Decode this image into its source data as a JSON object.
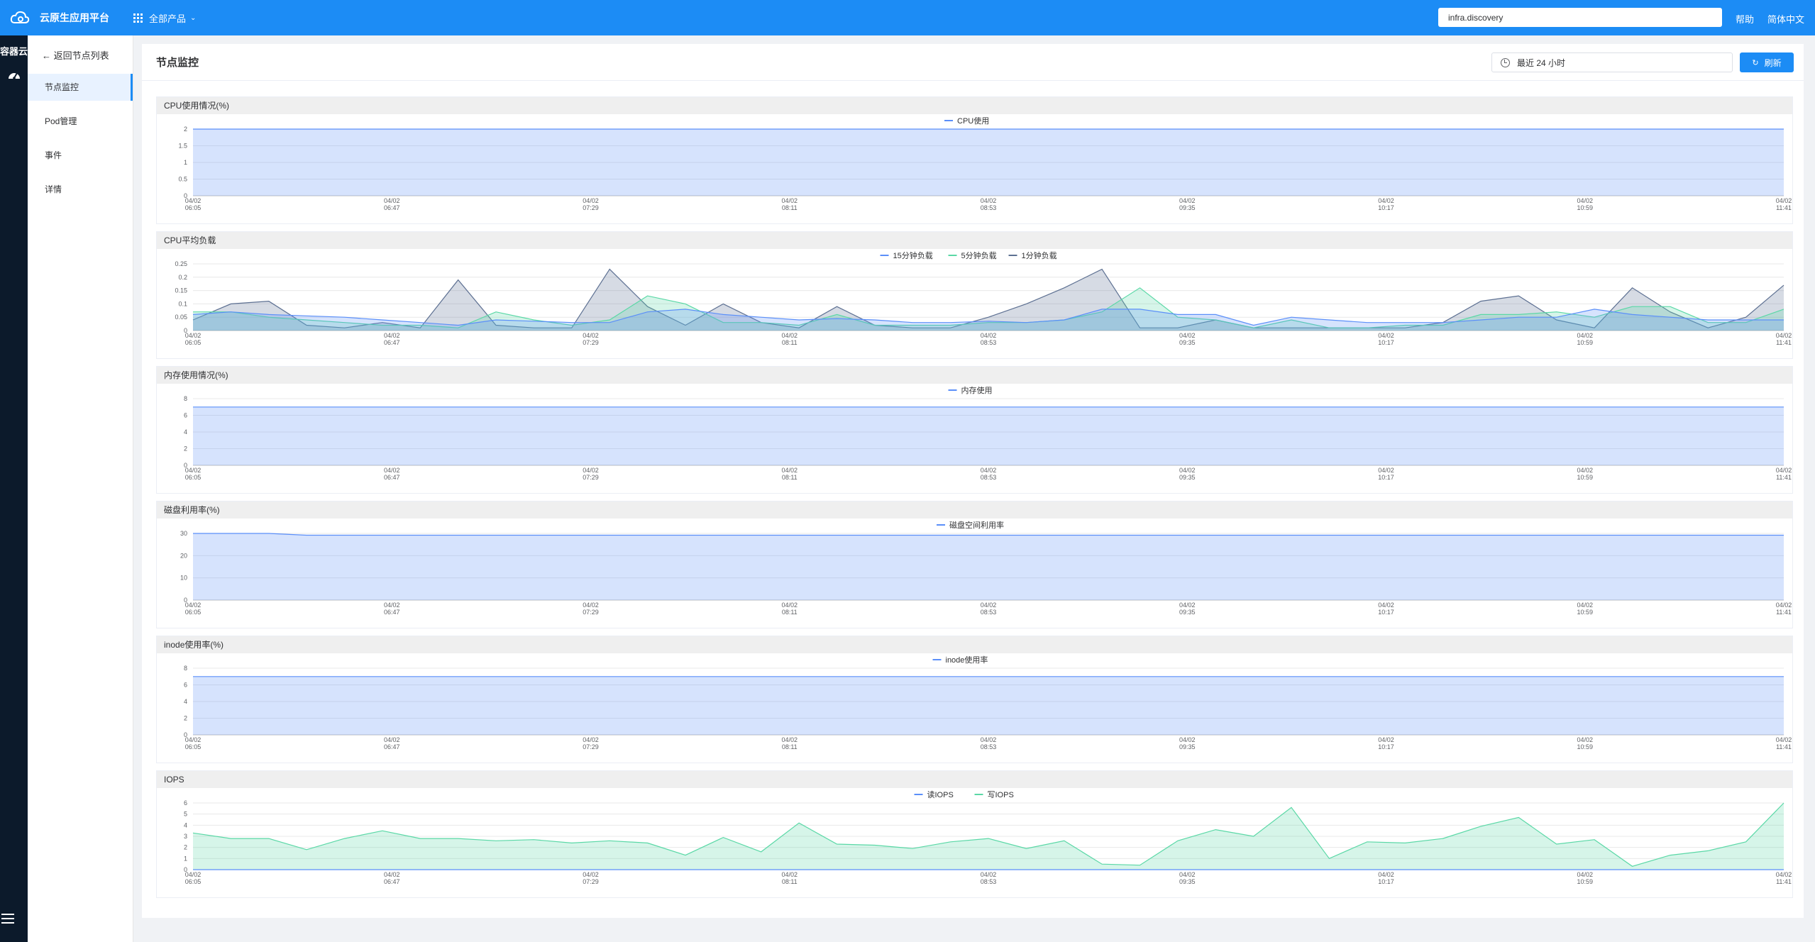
{
  "header": {
    "brand": "云原生应用平台",
    "products": "全部产品",
    "search_value": "infra.discovery",
    "help": "帮助",
    "language": "简体中文"
  },
  "leftnav": {
    "title": "容器云"
  },
  "sidebar": {
    "back": "← 返回节点列表",
    "items": [
      {
        "label": "节点监控"
      },
      {
        "label": "Pod管理"
      },
      {
        "label": "事件"
      },
      {
        "label": "详情"
      }
    ]
  },
  "page": {
    "title": "节点监控",
    "time_range": "最近 24 小时",
    "refresh": "刷新"
  },
  "colors": {
    "blue": "#5b8ff9",
    "green": "#5ad8a6",
    "dark": "#5d7092",
    "brand": "#1c8cf5"
  },
  "chart_data": [
    {
      "type": "area",
      "title": "CPU使用情况(%)",
      "ylim": [
        0,
        2
      ],
      "yticks": [
        "0",
        "0.5",
        "1",
        "1.5",
        "2"
      ],
      "xticks": [
        "04/02 06:05",
        "04/02 06:47",
        "04/02 07:29",
        "04/02 08:11",
        "04/02 08:53",
        "04/02 09:35",
        "04/02 10:17",
        "04/02 10:59",
        "04/02 11:41"
      ],
      "series": [
        {
          "name": "CPU使用",
          "color": "#5b8ff9",
          "values": [
            2,
            2,
            2,
            2,
            2,
            2,
            2,
            2,
            2,
            2,
            2,
            2,
            2,
            2,
            2,
            2,
            2,
            2,
            2,
            2,
            2,
            2,
            2,
            2,
            2,
            2,
            2,
            2,
            2,
            2,
            2,
            2,
            2,
            2,
            2,
            2,
            2,
            2,
            2,
            2,
            2,
            2,
            2
          ]
        }
      ]
    },
    {
      "type": "area",
      "title": "CPU平均负载",
      "ylim": [
        0,
        0.25
      ],
      "yticks": [
        "0",
        "0.05",
        "0.1",
        "0.15",
        "0.2",
        "0.25"
      ],
      "xticks": [
        "04/02 06:05",
        "04/02 06:47",
        "04/02 07:29",
        "04/02 08:11",
        "04/02 08:53",
        "04/02 09:35",
        "04/02 10:17",
        "04/02 10:59",
        "04/02 11:41"
      ],
      "series": [
        {
          "name": "15分钟负载",
          "color": "#5b8ff9",
          "values": [
            0.06,
            0.07,
            0.06,
            0.055,
            0.05,
            0.04,
            0.03,
            0.02,
            0.04,
            0.035,
            0.03,
            0.03,
            0.07,
            0.08,
            0.06,
            0.05,
            0.04,
            0.045,
            0.04,
            0.03,
            0.03,
            0.035,
            0.03,
            0.04,
            0.08,
            0.08,
            0.06,
            0.06,
            0.02,
            0.05,
            0.04,
            0.03,
            0.03,
            0.03,
            0.04,
            0.05,
            0.05,
            0.08,
            0.06,
            0.05,
            0.04,
            0.04,
            0.04
          ]
        },
        {
          "name": "5分钟负载",
          "color": "#5ad8a6",
          "values": [
            0.07,
            0.07,
            0.05,
            0.04,
            0.03,
            0.02,
            0.02,
            0.01,
            0.07,
            0.04,
            0.02,
            0.04,
            0.13,
            0.1,
            0.03,
            0.03,
            0.02,
            0.06,
            0.02,
            0.02,
            0.02,
            0.03,
            0.03,
            0.04,
            0.07,
            0.16,
            0.05,
            0.04,
            0.01,
            0.04,
            0.01,
            0.01,
            0.02,
            0.02,
            0.06,
            0.06,
            0.07,
            0.05,
            0.09,
            0.09,
            0.03,
            0.03,
            0.08
          ]
        },
        {
          "name": "1分钟负载",
          "color": "#5d7092",
          "values": [
            0.04,
            0.1,
            0.11,
            0.02,
            0.01,
            0.03,
            0.01,
            0.19,
            0.02,
            0.01,
            0.01,
            0.23,
            0.09,
            0.02,
            0.1,
            0.03,
            0.01,
            0.09,
            0.02,
            0.01,
            0.01,
            0.05,
            0.1,
            0.16,
            0.23,
            0.01,
            0.01,
            0.04,
            0.01,
            0.01,
            0.01,
            0.01,
            0.01,
            0.03,
            0.11,
            0.13,
            0.04,
            0.01,
            0.16,
            0.07,
            0.01,
            0.05,
            0.17
          ]
        }
      ]
    },
    {
      "type": "area",
      "title": "内存使用情况(%)",
      "ylim": [
        0,
        8
      ],
      "yticks": [
        "0",
        "2",
        "4",
        "6",
        "8"
      ],
      "xticks": [
        "04/02 06:05",
        "04/02 06:47",
        "04/02 07:29",
        "04/02 08:11",
        "04/02 08:53",
        "04/02 09:35",
        "04/02 10:17",
        "04/02 10:59",
        "04/02 11:41"
      ],
      "series": [
        {
          "name": "内存使用",
          "color": "#5b8ff9",
          "values": [
            7,
            7,
            7,
            7,
            7,
            7,
            7,
            7,
            7,
            7,
            7,
            7,
            7,
            7,
            7,
            7,
            7,
            7,
            7,
            7,
            7,
            7,
            7,
            7,
            7,
            7,
            7,
            7,
            7,
            7,
            7,
            7,
            7,
            7,
            7,
            7,
            7,
            7,
            7,
            7,
            7,
            7,
            7
          ]
        }
      ]
    },
    {
      "type": "area",
      "title": "磁盘利用率(%)",
      "ylim": [
        0,
        30
      ],
      "yticks": [
        "0",
        "10",
        "20",
        "30"
      ],
      "xticks": [
        "04/02 06:05",
        "04/02 06:47",
        "04/02 07:29",
        "04/02 08:11",
        "04/02 08:53",
        "04/02 09:35",
        "04/02 10:17",
        "04/02 10:59",
        "04/02 11:41"
      ],
      "series": [
        {
          "name": "磁盘空间利用率",
          "color": "#5b8ff9",
          "values": [
            30,
            30,
            30,
            29.2,
            29.2,
            29.2,
            29.2,
            29.2,
            29.2,
            29.2,
            29.2,
            29.2,
            29.2,
            29.2,
            29.2,
            29.2,
            29.2,
            29.2,
            29.2,
            29.2,
            29.2,
            29.2,
            29.2,
            29.2,
            29.2,
            29.2,
            29.2,
            29.2,
            29.2,
            29.2,
            29.2,
            29.2,
            29.2,
            29.2,
            29.2,
            29.2,
            29.2,
            29.2,
            29.2,
            29.2,
            29.2,
            29.2,
            29.2
          ]
        }
      ]
    },
    {
      "type": "area",
      "title": "inode使用率(%)",
      "ylim": [
        0,
        8
      ],
      "yticks": [
        "0",
        "2",
        "4",
        "6",
        "8"
      ],
      "xticks": [
        "04/02 06:05",
        "04/02 06:47",
        "04/02 07:29",
        "04/02 08:11",
        "04/02 08:53",
        "04/02 09:35",
        "04/02 10:17",
        "04/02 10:59",
        "04/02 11:41"
      ],
      "series": [
        {
          "name": "inode使用率",
          "color": "#5b8ff9",
          "values": [
            7,
            7,
            7,
            7,
            7,
            7,
            7,
            7,
            7,
            7,
            7,
            7,
            7,
            7,
            7,
            7,
            7,
            7,
            7,
            7,
            7,
            7,
            7,
            7,
            7,
            7,
            7,
            7,
            7,
            7,
            7,
            7,
            7,
            7,
            7,
            7,
            7,
            7,
            7,
            7,
            7,
            7,
            7
          ]
        }
      ]
    },
    {
      "type": "area",
      "title": "IOPS",
      "ylim": [
        0,
        6
      ],
      "yticks": [
        "0",
        "1",
        "2",
        "3",
        "4",
        "5",
        "6"
      ],
      "xticks": [
        "04/02 06:05",
        "04/02 06:47",
        "04/02 07:29",
        "04/02 08:11",
        "04/02 08:53",
        "04/02 09:35",
        "04/02 10:17",
        "04/02 10:59",
        "04/02 11:41"
      ],
      "series": [
        {
          "name": "读IOPS",
          "color": "#5b8ff9",
          "values": [
            0,
            0,
            0,
            0,
            0,
            0,
            0,
            0,
            0,
            0,
            0,
            0,
            0,
            0,
            0,
            0,
            0,
            0,
            0,
            0,
            0,
            0,
            0,
            0,
            0,
            0,
            0,
            0,
            0,
            0,
            0,
            0,
            0,
            0,
            0,
            0,
            0,
            0,
            0,
            0,
            0,
            0,
            0
          ]
        },
        {
          "name": "写IOPS",
          "color": "#5ad8a6",
          "values": [
            3.3,
            2.8,
            2.8,
            1.8,
            2.8,
            3.5,
            2.8,
            2.8,
            2.6,
            2.7,
            2.4,
            2.6,
            2.4,
            1.3,
            2.9,
            1.6,
            4.2,
            2.3,
            2.2,
            1.9,
            2.5,
            2.8,
            1.9,
            2.6,
            0.5,
            0.4,
            2.6,
            3.6,
            3,
            5.6,
            1,
            2.5,
            2.4,
            2.8,
            3.9,
            4.7,
            2.3,
            2.7,
            0.3,
            1.3,
            1.7,
            2.5,
            6
          ]
        }
      ]
    }
  ]
}
